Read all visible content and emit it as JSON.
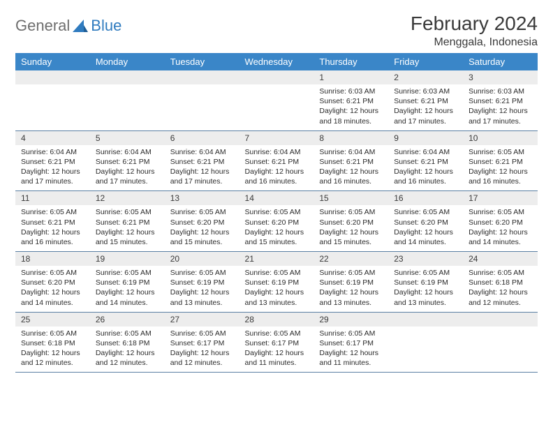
{
  "brand": {
    "general": "General",
    "blue": "Blue"
  },
  "title": "February 2024",
  "location": "Menggala, Indonesia",
  "colors": {
    "header_bg": "#3a86c8",
    "header_fg": "#ffffff",
    "daynum_bg": "#ededed",
    "rule": "#5a7fa3",
    "text": "#2b2b2b",
    "logo_gray": "#6e6e6e",
    "logo_blue": "#2f7bbf"
  },
  "day_headers": [
    "Sunday",
    "Monday",
    "Tuesday",
    "Wednesday",
    "Thursday",
    "Friday",
    "Saturday"
  ],
  "weeks": [
    [
      {
        "n": "",
        "sr": "",
        "ss": "",
        "dl": ""
      },
      {
        "n": "",
        "sr": "",
        "ss": "",
        "dl": ""
      },
      {
        "n": "",
        "sr": "",
        "ss": "",
        "dl": ""
      },
      {
        "n": "",
        "sr": "",
        "ss": "",
        "dl": ""
      },
      {
        "n": "1",
        "sr": "Sunrise: 6:03 AM",
        "ss": "Sunset: 6:21 PM",
        "dl": "Daylight: 12 hours and 18 minutes."
      },
      {
        "n": "2",
        "sr": "Sunrise: 6:03 AM",
        "ss": "Sunset: 6:21 PM",
        "dl": "Daylight: 12 hours and 17 minutes."
      },
      {
        "n": "3",
        "sr": "Sunrise: 6:03 AM",
        "ss": "Sunset: 6:21 PM",
        "dl": "Daylight: 12 hours and 17 minutes."
      }
    ],
    [
      {
        "n": "4",
        "sr": "Sunrise: 6:04 AM",
        "ss": "Sunset: 6:21 PM",
        "dl": "Daylight: 12 hours and 17 minutes."
      },
      {
        "n": "5",
        "sr": "Sunrise: 6:04 AM",
        "ss": "Sunset: 6:21 PM",
        "dl": "Daylight: 12 hours and 17 minutes."
      },
      {
        "n": "6",
        "sr": "Sunrise: 6:04 AM",
        "ss": "Sunset: 6:21 PM",
        "dl": "Daylight: 12 hours and 17 minutes."
      },
      {
        "n": "7",
        "sr": "Sunrise: 6:04 AM",
        "ss": "Sunset: 6:21 PM",
        "dl": "Daylight: 12 hours and 16 minutes."
      },
      {
        "n": "8",
        "sr": "Sunrise: 6:04 AM",
        "ss": "Sunset: 6:21 PM",
        "dl": "Daylight: 12 hours and 16 minutes."
      },
      {
        "n": "9",
        "sr": "Sunrise: 6:04 AM",
        "ss": "Sunset: 6:21 PM",
        "dl": "Daylight: 12 hours and 16 minutes."
      },
      {
        "n": "10",
        "sr": "Sunrise: 6:05 AM",
        "ss": "Sunset: 6:21 PM",
        "dl": "Daylight: 12 hours and 16 minutes."
      }
    ],
    [
      {
        "n": "11",
        "sr": "Sunrise: 6:05 AM",
        "ss": "Sunset: 6:21 PM",
        "dl": "Daylight: 12 hours and 16 minutes."
      },
      {
        "n": "12",
        "sr": "Sunrise: 6:05 AM",
        "ss": "Sunset: 6:21 PM",
        "dl": "Daylight: 12 hours and 15 minutes."
      },
      {
        "n": "13",
        "sr": "Sunrise: 6:05 AM",
        "ss": "Sunset: 6:20 PM",
        "dl": "Daylight: 12 hours and 15 minutes."
      },
      {
        "n": "14",
        "sr": "Sunrise: 6:05 AM",
        "ss": "Sunset: 6:20 PM",
        "dl": "Daylight: 12 hours and 15 minutes."
      },
      {
        "n": "15",
        "sr": "Sunrise: 6:05 AM",
        "ss": "Sunset: 6:20 PM",
        "dl": "Daylight: 12 hours and 15 minutes."
      },
      {
        "n": "16",
        "sr": "Sunrise: 6:05 AM",
        "ss": "Sunset: 6:20 PM",
        "dl": "Daylight: 12 hours and 14 minutes."
      },
      {
        "n": "17",
        "sr": "Sunrise: 6:05 AM",
        "ss": "Sunset: 6:20 PM",
        "dl": "Daylight: 12 hours and 14 minutes."
      }
    ],
    [
      {
        "n": "18",
        "sr": "Sunrise: 6:05 AM",
        "ss": "Sunset: 6:20 PM",
        "dl": "Daylight: 12 hours and 14 minutes."
      },
      {
        "n": "19",
        "sr": "Sunrise: 6:05 AM",
        "ss": "Sunset: 6:19 PM",
        "dl": "Daylight: 12 hours and 14 minutes."
      },
      {
        "n": "20",
        "sr": "Sunrise: 6:05 AM",
        "ss": "Sunset: 6:19 PM",
        "dl": "Daylight: 12 hours and 13 minutes."
      },
      {
        "n": "21",
        "sr": "Sunrise: 6:05 AM",
        "ss": "Sunset: 6:19 PM",
        "dl": "Daylight: 12 hours and 13 minutes."
      },
      {
        "n": "22",
        "sr": "Sunrise: 6:05 AM",
        "ss": "Sunset: 6:19 PM",
        "dl": "Daylight: 12 hours and 13 minutes."
      },
      {
        "n": "23",
        "sr": "Sunrise: 6:05 AM",
        "ss": "Sunset: 6:19 PM",
        "dl": "Daylight: 12 hours and 13 minutes."
      },
      {
        "n": "24",
        "sr": "Sunrise: 6:05 AM",
        "ss": "Sunset: 6:18 PM",
        "dl": "Daylight: 12 hours and 12 minutes."
      }
    ],
    [
      {
        "n": "25",
        "sr": "Sunrise: 6:05 AM",
        "ss": "Sunset: 6:18 PM",
        "dl": "Daylight: 12 hours and 12 minutes."
      },
      {
        "n": "26",
        "sr": "Sunrise: 6:05 AM",
        "ss": "Sunset: 6:18 PM",
        "dl": "Daylight: 12 hours and 12 minutes."
      },
      {
        "n": "27",
        "sr": "Sunrise: 6:05 AM",
        "ss": "Sunset: 6:17 PM",
        "dl": "Daylight: 12 hours and 12 minutes."
      },
      {
        "n": "28",
        "sr": "Sunrise: 6:05 AM",
        "ss": "Sunset: 6:17 PM",
        "dl": "Daylight: 12 hours and 11 minutes."
      },
      {
        "n": "29",
        "sr": "Sunrise: 6:05 AM",
        "ss": "Sunset: 6:17 PM",
        "dl": "Daylight: 12 hours and 11 minutes."
      },
      {
        "n": "",
        "sr": "",
        "ss": "",
        "dl": ""
      },
      {
        "n": "",
        "sr": "",
        "ss": "",
        "dl": ""
      }
    ]
  ]
}
